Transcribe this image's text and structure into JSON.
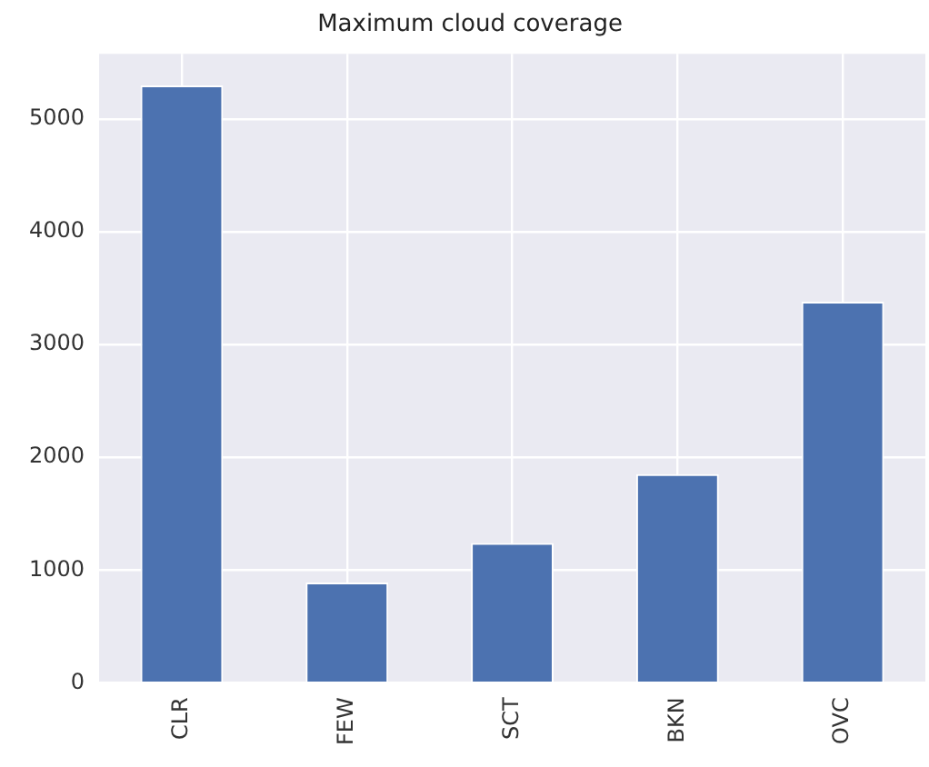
{
  "chart_data": {
    "type": "bar",
    "title": "Maximum cloud coverage",
    "categories": [
      "CLR",
      "FEW",
      "SCT",
      "BKN",
      "OVC"
    ],
    "values": [
      5300,
      890,
      1240,
      1850,
      3380
    ],
    "color": "#4c72b0",
    "ylim": [
      0,
      5580
    ],
    "yticks": [
      0,
      1000,
      2000,
      3000,
      4000,
      5000
    ],
    "grid": true,
    "legend": false
  }
}
